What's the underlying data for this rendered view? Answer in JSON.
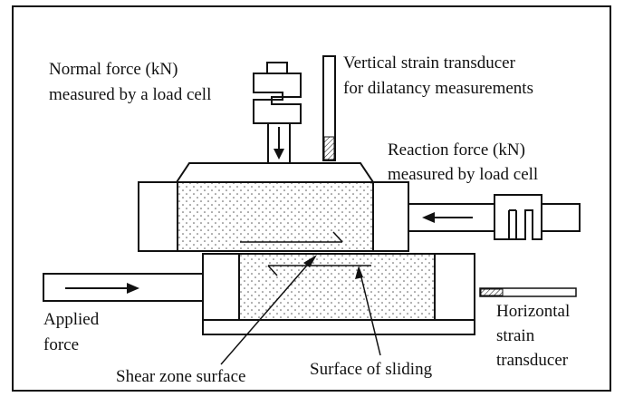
{
  "labels": {
    "normal_force_1": "Normal force (kN)",
    "normal_force_2": "measured by a load cell",
    "vertical_strain_1": "Vertical strain transducer",
    "vertical_strain_2": "for dilatancy measurements",
    "reaction_force_1": "Reaction force (kN)",
    "reaction_force_2": "measured by load cell",
    "applied_force_1": "Applied",
    "applied_force_2": "force",
    "horizontal_strain_1": "Horizontal",
    "horizontal_strain_2": "strain",
    "horizontal_strain_3": "transducer",
    "shear_zone": "Shear zone surface",
    "surface_sliding": "Surface of sliding"
  },
  "colors": {
    "stroke": "#111111",
    "background": "#ffffff",
    "sample_dots": "#555555"
  }
}
